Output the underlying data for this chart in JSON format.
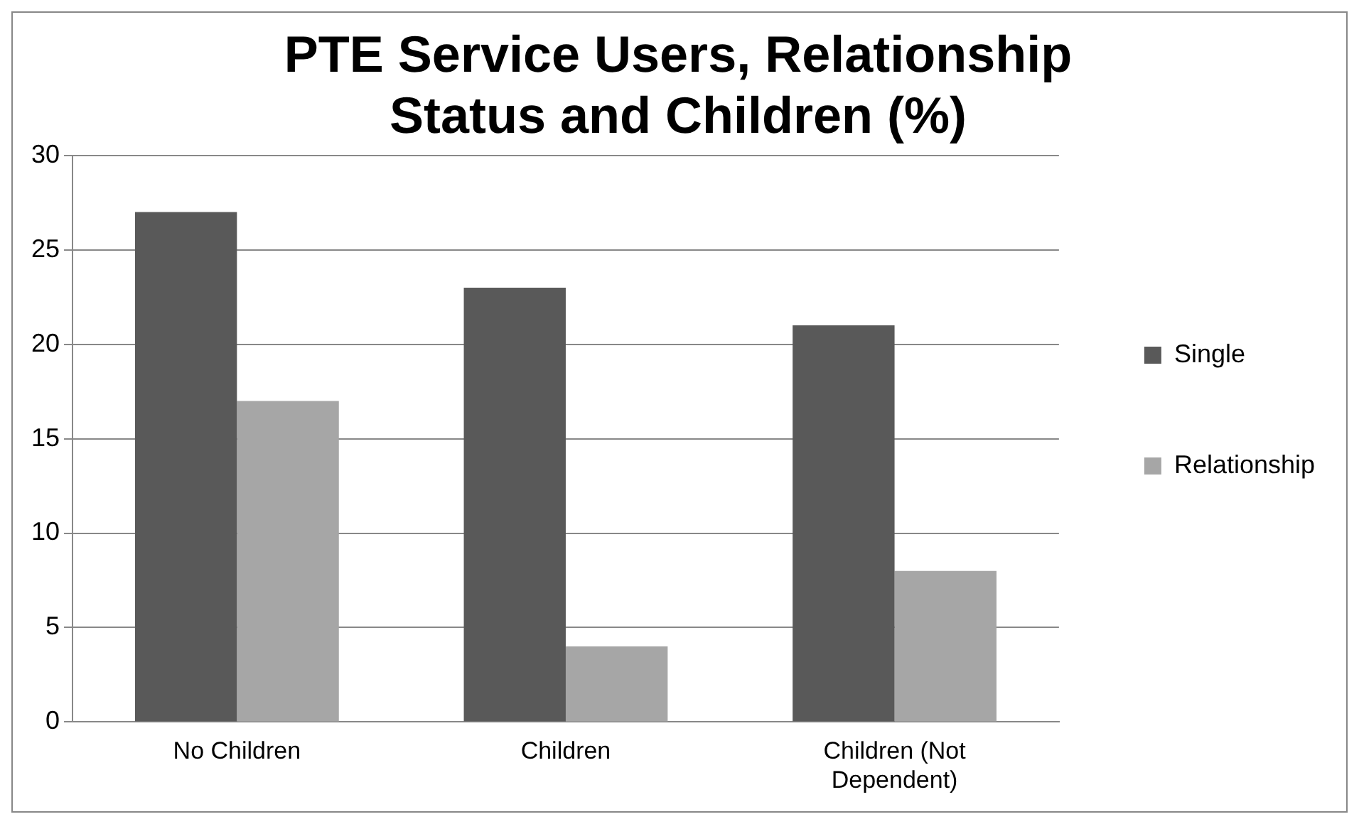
{
  "chart_data": {
    "type": "bar",
    "title": "PTE Service Users, Relationship Status and Children (%)",
    "categories": [
      "No Children",
      "Children",
      "Children (Not Dependent)"
    ],
    "series": [
      {
        "name": "Single",
        "color": "#595959",
        "values": [
          27,
          23,
          21
        ]
      },
      {
        "name": "Relationship",
        "color": "#a6a6a6",
        "values": [
          17,
          4,
          8
        ]
      }
    ],
    "ylim": [
      0,
      30
    ],
    "yticks": [
      0,
      5,
      10,
      15,
      20,
      25,
      30
    ],
    "grid": "y",
    "legend": "right"
  }
}
